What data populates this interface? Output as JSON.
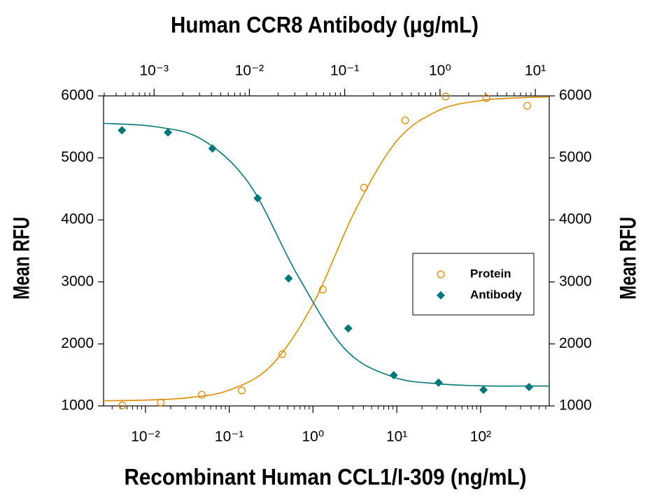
{
  "chart_data": {
    "type": "scatter",
    "x2label": "Human CCR8 Antibody (μg/mL)",
    "xlabel": "Recombinant Human CCL1/I-309 (ng/mL)",
    "ylabel": "Mean RFU",
    "y2label": "Mean RFU",
    "xscale": "log",
    "x2scale": "log",
    "xlim": [
      0.00316,
      660
    ],
    "x2lim": [
      0.000295,
      14
    ],
    "ylim": [
      1000,
      6000
    ],
    "y2lim": [
      1000,
      6000
    ],
    "xticks": [
      {
        "value": 0.01,
        "label": "10⁻²"
      },
      {
        "value": 0.1,
        "label": "10⁻¹"
      },
      {
        "value": 1,
        "label": "10⁰"
      },
      {
        "value": 10,
        "label": "10¹"
      },
      {
        "value": 100,
        "label": "10²"
      }
    ],
    "x2ticks": [
      {
        "value": 0.001,
        "label": "10⁻³"
      },
      {
        "value": 0.01,
        "label": "10⁻²"
      },
      {
        "value": 0.1,
        "label": "10⁻¹"
      },
      {
        "value": 1,
        "label": "10⁰"
      },
      {
        "value": 10,
        "label": "10¹"
      }
    ],
    "yticks": [
      1000,
      2000,
      3000,
      4000,
      5000,
      6000
    ],
    "y2ticks": [
      1000,
      2000,
      3000,
      4000,
      5000,
      6000
    ],
    "legend": "center right",
    "series": [
      {
        "name": "Protein",
        "color": "#e08a00",
        "marker": "open-circle",
        "axis": "x",
        "x": [
          0.0053,
          0.0152,
          0.047,
          0.141,
          0.43,
          1.31,
          4.06,
          12.6,
          38.3,
          117,
          361
        ],
        "values": [
          1010,
          1055,
          1180,
          1250,
          1835,
          2875,
          4520,
          5605,
          5990,
          5965,
          5840
        ],
        "fit": {
          "x": [
            0.00316,
            0.01,
            0.0316,
            0.1,
            0.316,
            1,
            3.16,
            10,
            31.6,
            100,
            316,
            660
          ],
          "values": [
            1084,
            1094,
            1131,
            1255,
            1649,
            2643,
            4141,
            5275,
            5765,
            5924,
            5971,
            5982
          ]
        }
      },
      {
        "name": "Antibody",
        "color": "#00787a",
        "marker": "diamond",
        "axis": "x2",
        "x": [
          0.00046,
          0.0014,
          0.0041,
          0.0122,
          0.0258,
          0.109,
          0.327,
          0.966,
          2.86,
          8.6
        ],
        "values": [
          5445,
          5410,
          5150,
          4350,
          3055,
          2250,
          1495,
          1375,
          1260,
          1305
        ],
        "fit": {
          "x": [
            0.000295,
            0.001,
            0.00316,
            0.01,
            0.0316,
            0.1,
            0.316,
            1,
            3.16,
            10,
            14
          ],
          "values": [
            5557,
            5506,
            5299,
            4579,
            3124,
            1922,
            1471,
            1355,
            1322,
            1321,
            1320
          ]
        }
      }
    ]
  }
}
